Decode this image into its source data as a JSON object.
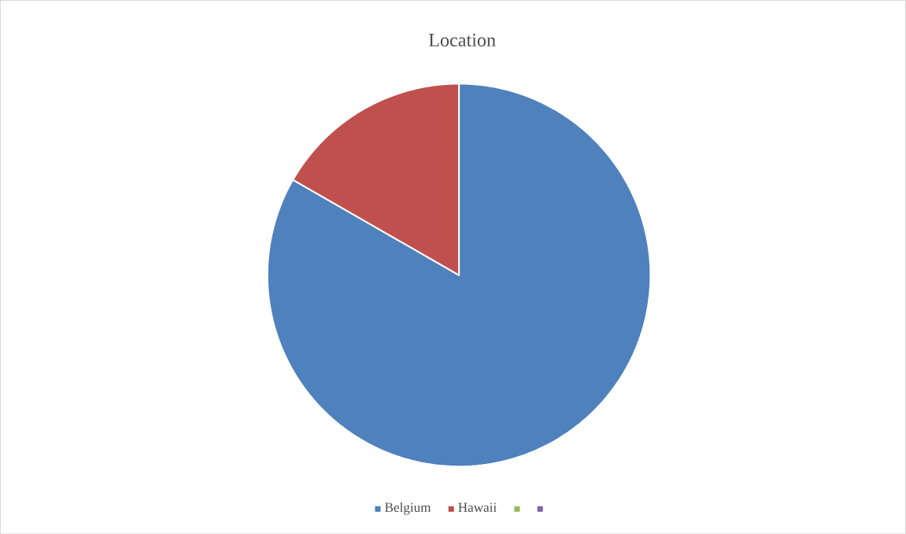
{
  "chart_data": {
    "type": "pie",
    "title": "Location",
    "categories": [
      "Belgium",
      "Hawaii",
      null,
      null
    ],
    "values": [
      83.3,
      16.7,
      0,
      0
    ],
    "colors": [
      "#4f81bd",
      "#c0504d",
      "#9bbb59",
      "#8064a2"
    ],
    "legend": "bottom"
  }
}
